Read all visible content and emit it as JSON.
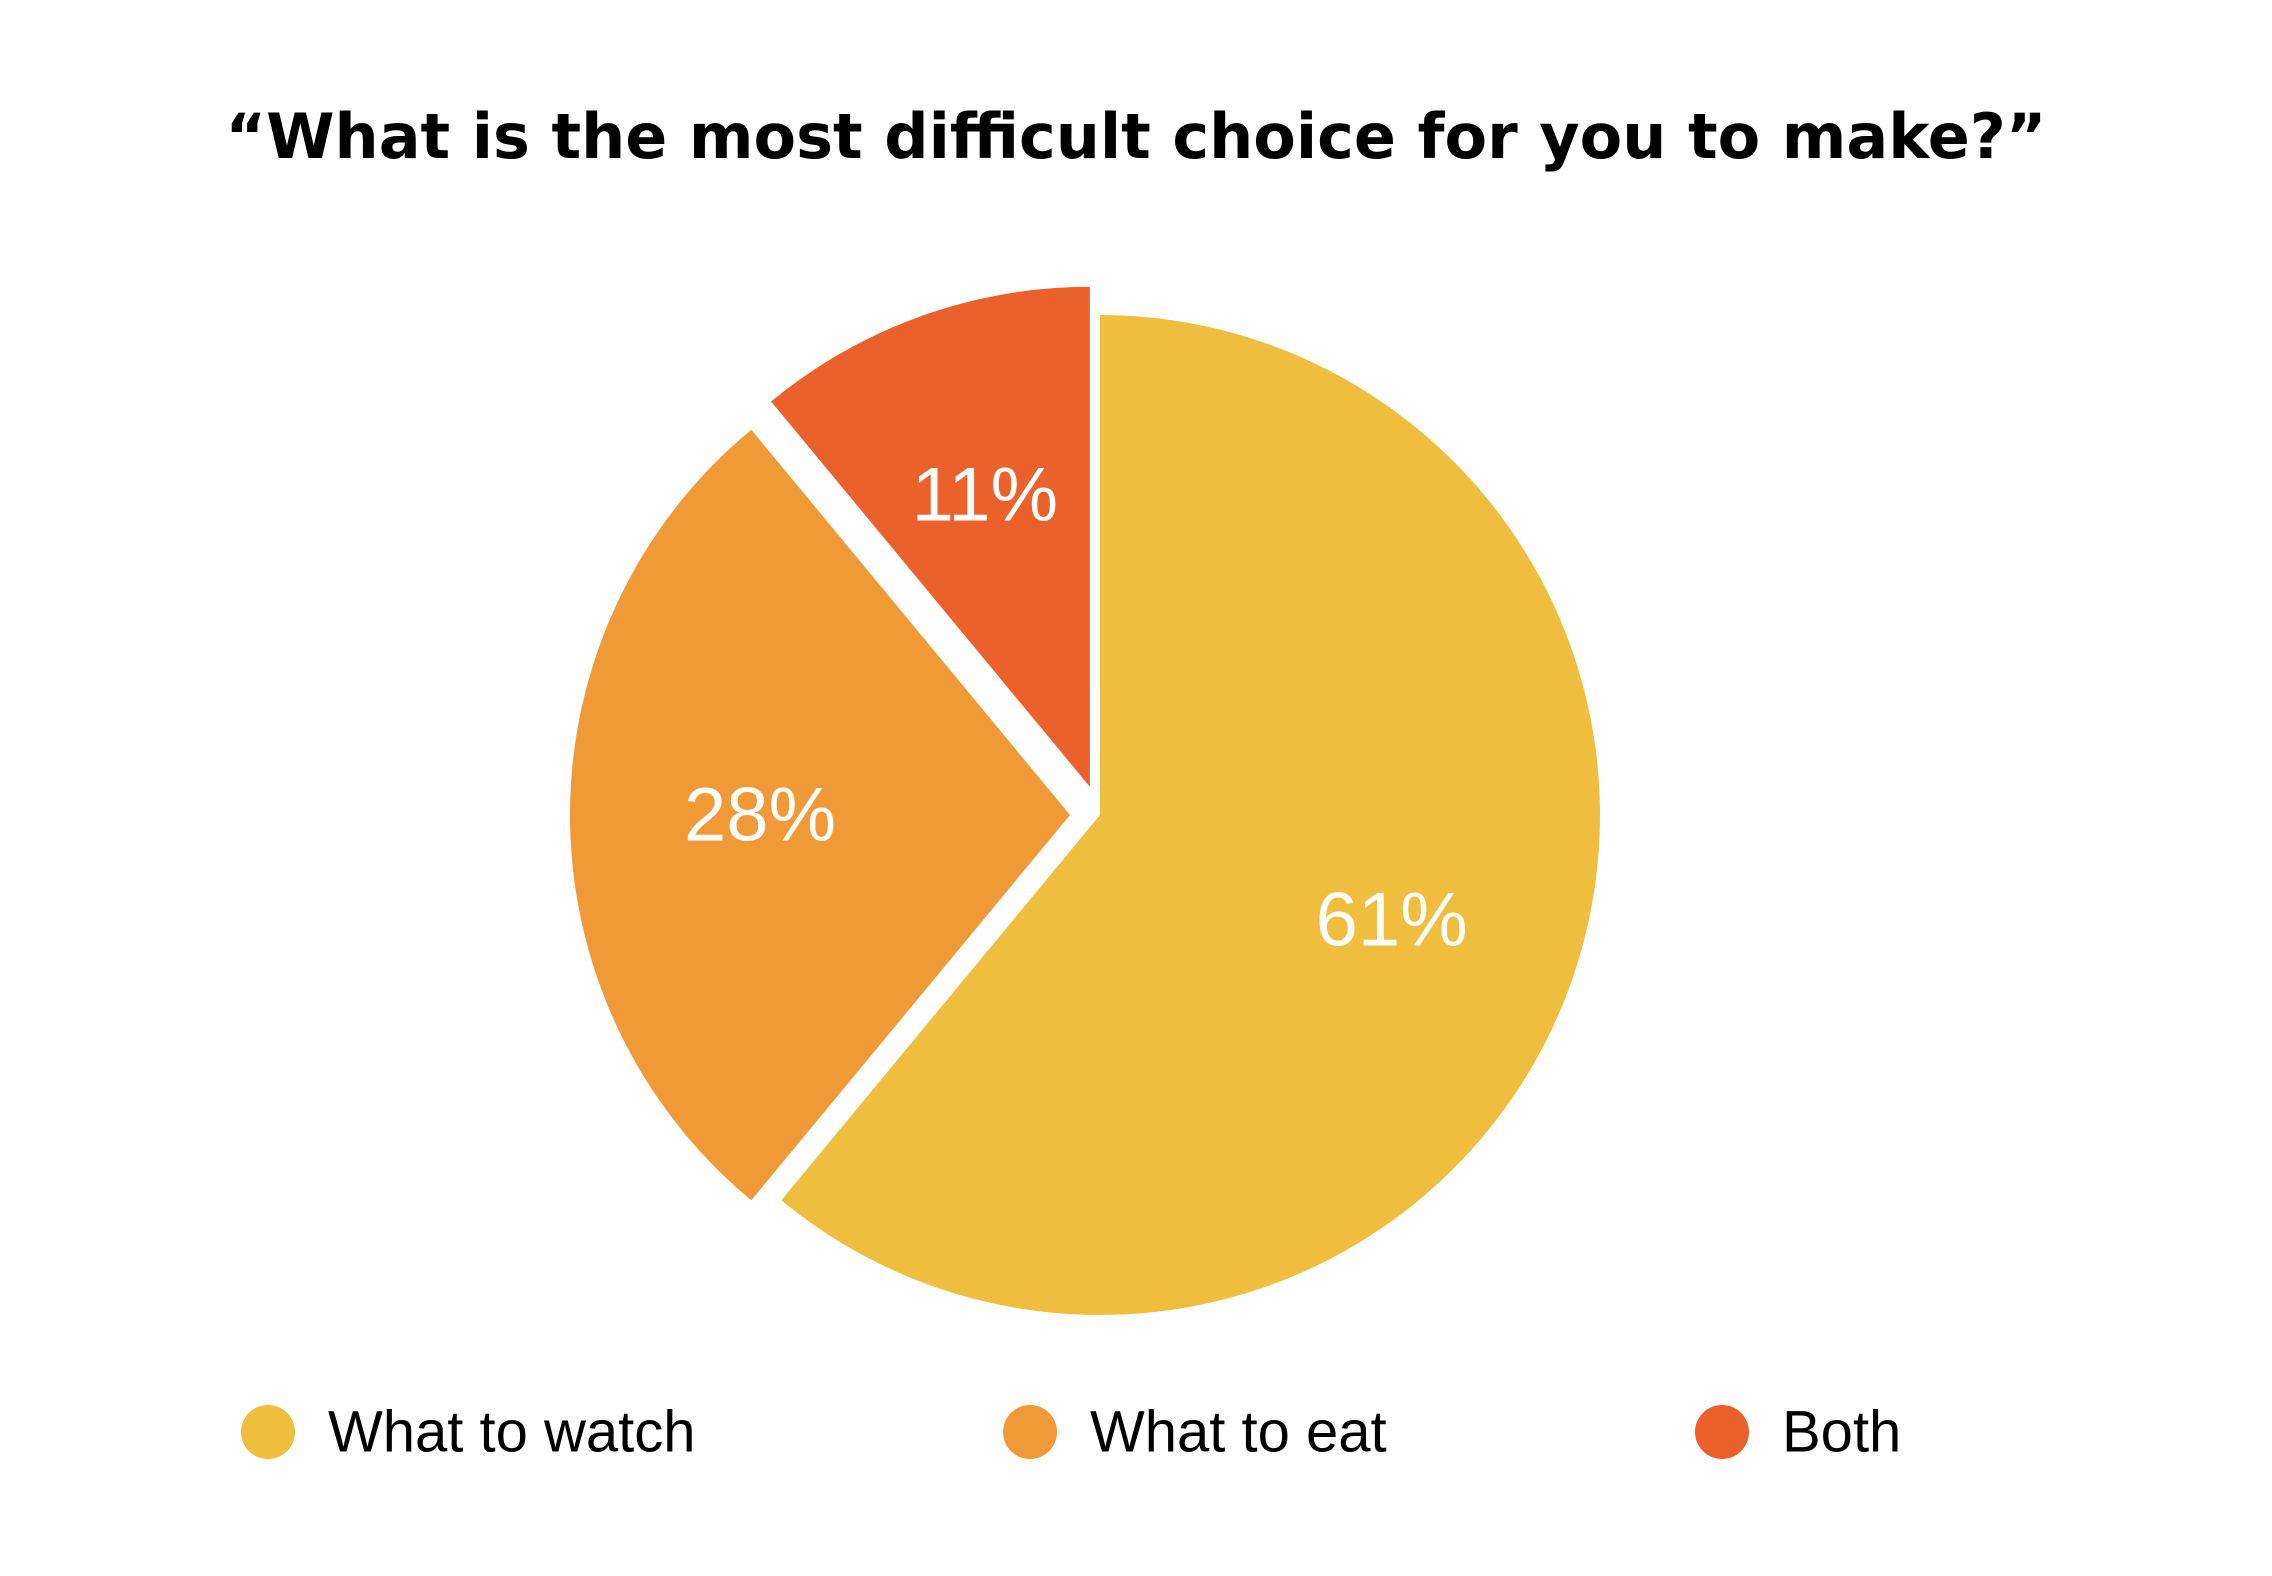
{
  "chart_data": {
    "type": "pie",
    "title": "“What is the most difficult choice for you to make?”",
    "categories": [
      "What to watch",
      "What to eat",
      "Both"
    ],
    "values": [
      61,
      28,
      11
    ],
    "labels": [
      "61%",
      "28%",
      "11%"
    ],
    "colors": [
      "#EFBE3F",
      "#F09A37",
      "#EA612B"
    ],
    "legend_position": "bottom",
    "exploded": true,
    "start": "12 o'clock",
    "direction": "clockwise"
  }
}
